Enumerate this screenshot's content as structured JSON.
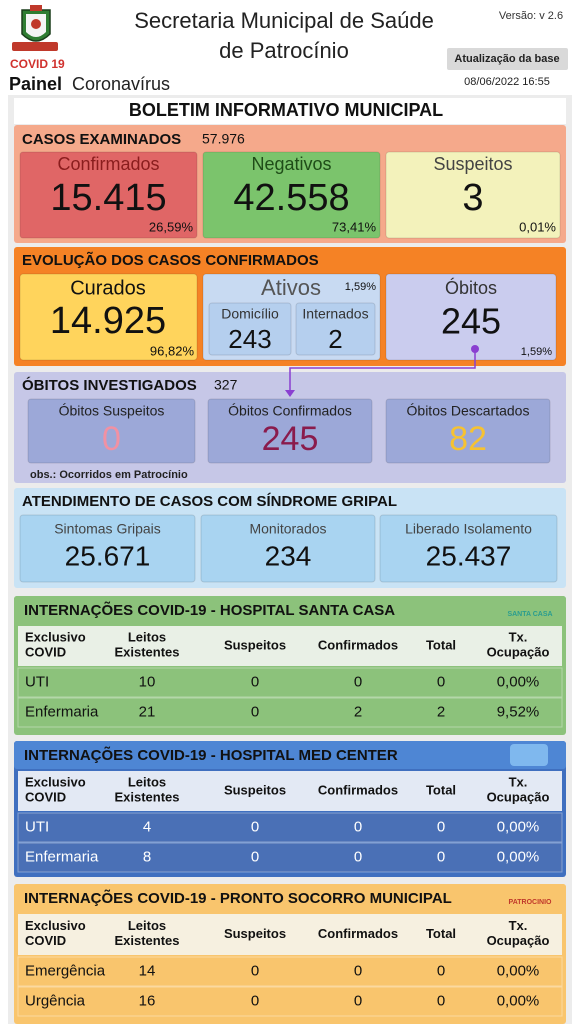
{
  "header": {
    "covid_label": "COVID 19",
    "title_line1": "Secretaria Municipal de Saúde",
    "title_line2": "de Patrocínio",
    "version": "Versão: v 2.6",
    "update_label": "Atualização da base",
    "update_date": "08/06/2022 16:55",
    "panel_bold": "Painel",
    "panel_rest": "Coronavírus"
  },
  "bulletin_title": "BOLETIM INFORMATIVO MUNICIPAL",
  "cases": {
    "title": "CASOS EXAMINADOS",
    "total": "57.976",
    "cards": [
      {
        "label": "Confirmados",
        "value": "15.415",
        "pct": "26,59%"
      },
      {
        "label": "Negativos",
        "value": "42.558",
        "pct": "73,41%"
      },
      {
        "label": "Suspeitos",
        "value": "3",
        "pct": "0,01%"
      }
    ]
  },
  "evolution": {
    "title": "EVOLUÇÃO DOS CASOS CONFIRMADOS",
    "recovered": {
      "label": "Curados",
      "value": "14.925",
      "pct": "96,82%"
    },
    "active": {
      "label": "Ativos",
      "pct": "1,59%",
      "sub": [
        {
          "label": "Domicílio",
          "value": "243"
        },
        {
          "label": "Internados",
          "value": "2"
        }
      ]
    },
    "deaths": {
      "label": "Óbitos",
      "value": "245",
      "pct": "1,59%"
    }
  },
  "investigated": {
    "title": "ÓBITOS INVESTIGADOS",
    "total": "327",
    "cards": [
      {
        "label": "Óbitos Suspeitos",
        "value": "0"
      },
      {
        "label": "Óbitos Confirmados",
        "value": "245"
      },
      {
        "label": "Óbitos Descartados",
        "value": "82"
      }
    ],
    "note": "obs.: Ocorridos em Patrocínio"
  },
  "syndrome": {
    "title": "ATENDIMENTO DE CASOS COM SÍNDROME GRIPAL",
    "cards": [
      {
        "label": "Sintomas Gripais",
        "value": "25.671"
      },
      {
        "label": "Monitorados",
        "value": "234"
      },
      {
        "label": "Liberado Isolamento",
        "value": "25.437"
      }
    ]
  },
  "hospitals": [
    {
      "title": "INTERNAÇÕES COVID-19 - HOSPITAL SANTA CASA",
      "logo": "SANTA CASA",
      "header": [
        "Exclusivo COVID",
        "Leitos Existentes",
        "Suspeitos",
        "Confirmados",
        "Total",
        "Tx. Ocupação"
      ],
      "rows": [
        [
          "UTI",
          "10",
          "0",
          "0",
          "0",
          "0,00%"
        ],
        [
          "Enfermaria",
          "21",
          "0",
          "2",
          "2",
          "9,52%"
        ]
      ]
    },
    {
      "title": "INTERNAÇÕES COVID-19 - HOSPITAL MED CENTER",
      "header": [
        "Exclusivo COVID",
        "Leitos Existentes",
        "Suspeitos",
        "Confirmados",
        "Total",
        "Tx. Ocupação"
      ],
      "rows": [
        [
          "UTI",
          "4",
          "0",
          "0",
          "0",
          "0,00%"
        ],
        [
          "Enfermaria",
          "8",
          "0",
          "0",
          "0",
          "0,00%"
        ]
      ]
    },
    {
      "title": "INTERNAÇÕES COVID-19 - PRONTO SOCORRO MUNICIPAL",
      "logo": "PATROCINIO",
      "header": [
        "Exclusivo COVID",
        "Leitos Existentes",
        "Suspeitos",
        "Confirmados",
        "Total",
        "Tx. Ocupação"
      ],
      "rows": [
        [
          "Emergência",
          "14",
          "0",
          "0",
          "0",
          "0,00%"
        ],
        [
          "Urgência",
          "16",
          "0",
          "0",
          "0",
          "0,00%"
        ]
      ]
    }
  ]
}
